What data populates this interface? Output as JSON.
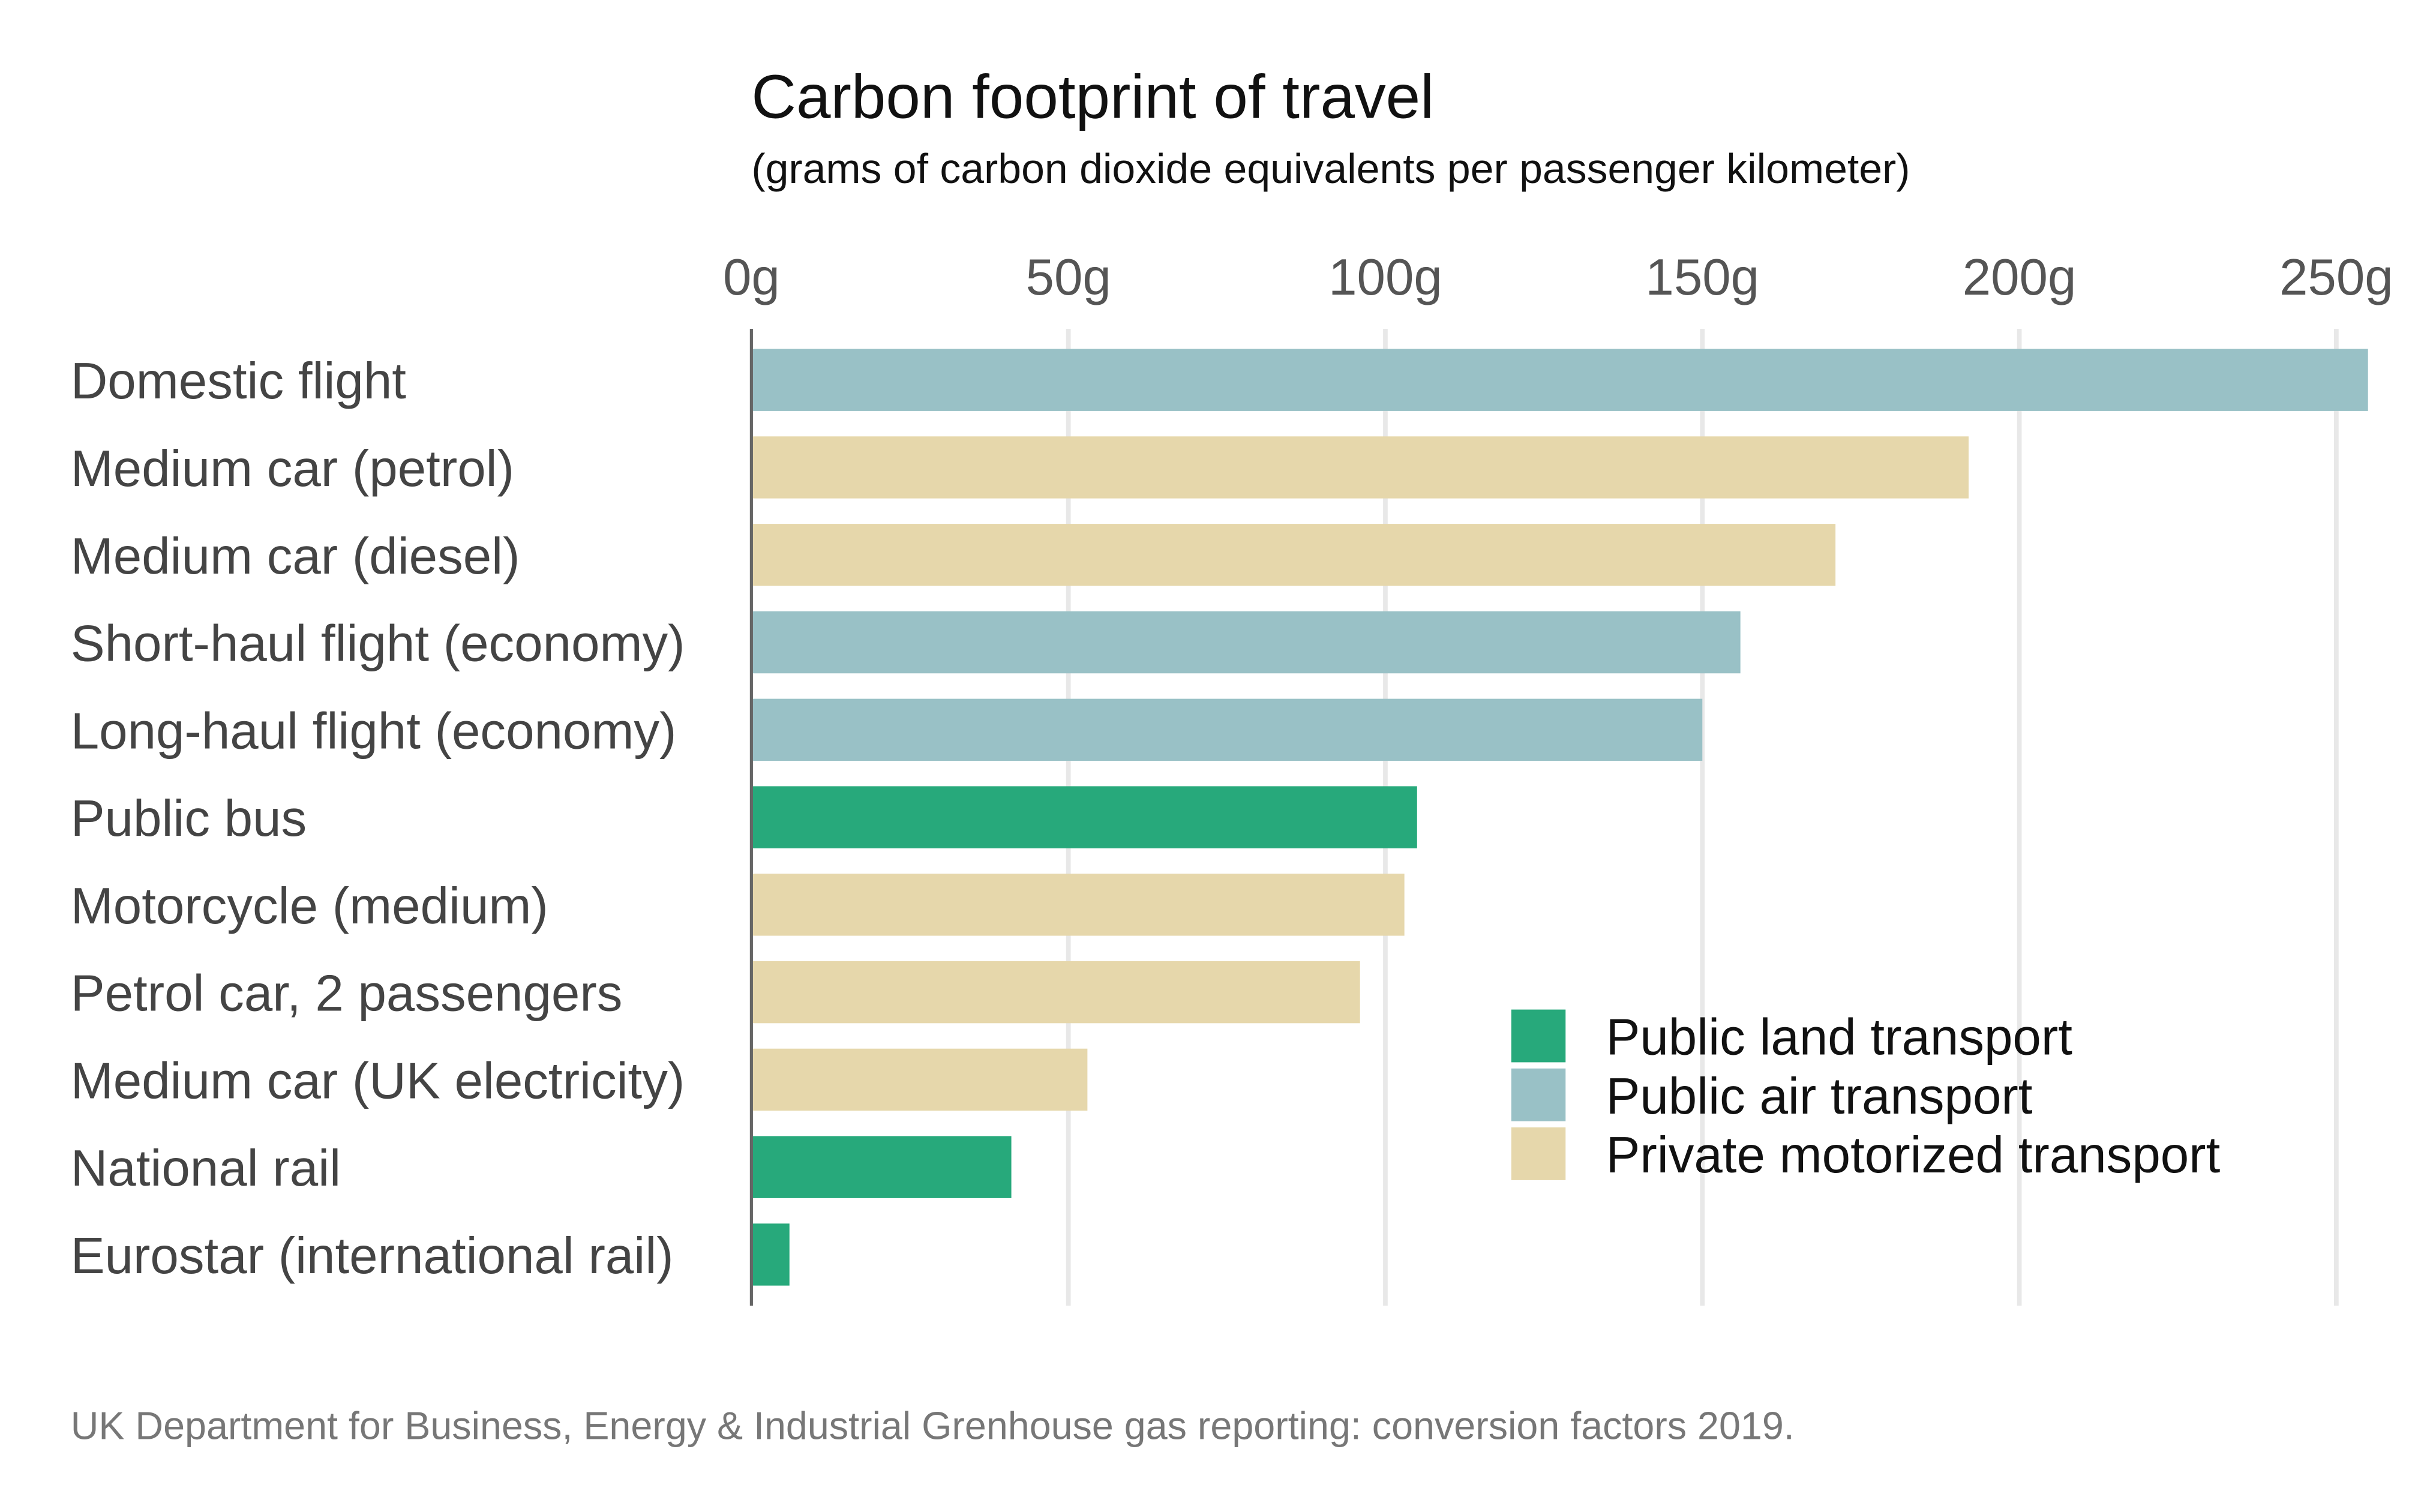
{
  "chart_data": {
    "type": "bar",
    "orientation": "horizontal",
    "title": "Carbon footprint of travel",
    "subtitle": "(grams of carbon dioxide equivalents per passenger kilometer)",
    "xlabel": "",
    "ylabel": "",
    "xlim": [
      0,
      250
    ],
    "ticks": [
      0,
      50,
      100,
      150,
      200,
      250
    ],
    "tick_labels": [
      "0g",
      "50g",
      "100g",
      "150g",
      "200g",
      "250g"
    ],
    "grid": true,
    "legend_position": "bottom-right",
    "categories": [
      "Domestic flight",
      "Medium car (petrol)",
      "Medium car (diesel)",
      "Short-haul flight (economy)",
      "Long-haul flight (economy)",
      "Public bus",
      "Motorcycle (medium)",
      "Petrol car, 2 passengers",
      "Medium car (UK electricity)",
      "National rail",
      "Eurostar (international rail)"
    ],
    "values": [
      255,
      192,
      171,
      156,
      150,
      105,
      103,
      96,
      53,
      41,
      6
    ],
    "groups": [
      "air",
      "private",
      "private",
      "air",
      "air",
      "land",
      "private",
      "private",
      "private",
      "land",
      "land"
    ],
    "legend": [
      {
        "key": "land",
        "label": "Public land transport",
        "color": "#27a97b"
      },
      {
        "key": "air",
        "label": "Public air transport",
        "color": "#99c1c6"
      },
      {
        "key": "private",
        "label": "Private motorized transport",
        "color": "#e6d7ab"
      }
    ],
    "source": "UK Department for Business, Energy & Industrial Grenhouse gas reporting: conversion factors 2019."
  }
}
